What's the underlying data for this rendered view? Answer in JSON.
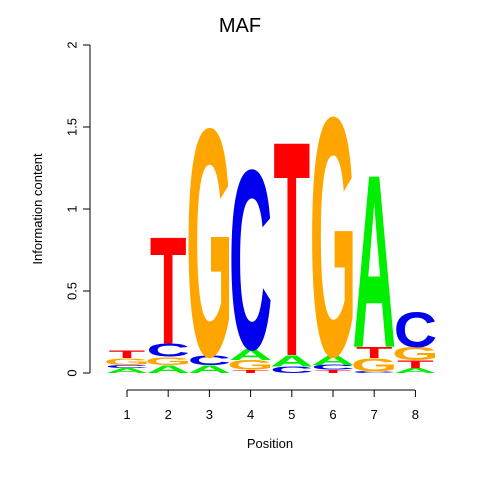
{
  "chart_data": {
    "type": "sequence-logo",
    "title": "MAF",
    "xlabel": "Position",
    "ylabel": "Information content",
    "ylim": [
      0,
      2
    ],
    "yticks": [
      "0",
      "0.5",
      "1",
      "1.5",
      "2"
    ],
    "positions": [
      "1",
      "2",
      "3",
      "4",
      "5",
      "6",
      "7",
      "8"
    ],
    "colors": {
      "A": "#00ee00",
      "C": "#0000ee",
      "G": "#ffa500",
      "T": "#ff0000"
    },
    "columns": [
      [
        {
          "letter": "A",
          "bits": 0.03
        },
        {
          "letter": "C",
          "bits": 0.02
        },
        {
          "letter": "G",
          "bits": 0.04
        },
        {
          "letter": "T",
          "bits": 0.05
        }
      ],
      [
        {
          "letter": "A",
          "bits": 0.05
        },
        {
          "letter": "G",
          "bits": 0.05
        },
        {
          "letter": "C",
          "bits": 0.08
        },
        {
          "letter": "T",
          "bits": 0.67
        }
      ],
      [
        {
          "letter": "A",
          "bits": 0.05
        },
        {
          "letter": "C",
          "bits": 0.06
        },
        {
          "letter": "G",
          "bits": 1.42
        }
      ],
      [
        {
          "letter": "T",
          "bits": 0.02
        },
        {
          "letter": "G",
          "bits": 0.06
        },
        {
          "letter": "A",
          "bits": 0.07
        },
        {
          "letter": "C",
          "bits": 1.12
        }
      ],
      [
        {
          "letter": "C",
          "bits": 0.04
        },
        {
          "letter": "A",
          "bits": 0.07
        },
        {
          "letter": "T",
          "bits": 1.34
        }
      ],
      [
        {
          "letter": "T",
          "bits": 0.02
        },
        {
          "letter": "C",
          "bits": 0.03
        },
        {
          "letter": "A",
          "bits": 0.06
        },
        {
          "letter": "G",
          "bits": 1.49
        }
      ],
      [
        {
          "letter": "C",
          "bits": 0.01
        },
        {
          "letter": "G",
          "bits": 0.08
        },
        {
          "letter": "T",
          "bits": 0.07
        },
        {
          "letter": "A",
          "bits": 1.08
        }
      ],
      [
        {
          "letter": "A",
          "bits": 0.03
        },
        {
          "letter": "T",
          "bits": 0.05
        },
        {
          "letter": "G",
          "bits": 0.08
        },
        {
          "letter": "C",
          "bits": 0.22
        }
      ]
    ]
  }
}
